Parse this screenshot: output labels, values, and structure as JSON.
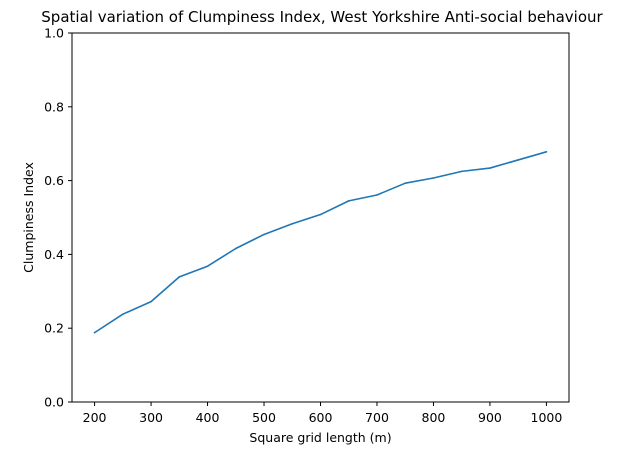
{
  "chart_data": {
    "type": "line",
    "title": "Spatial variation of Clumpiness Index, West Yorkshire Anti-social behaviour",
    "xlabel": "Square grid length (m)",
    "ylabel": "Clumpiness Index",
    "xlim": [
      160,
      1040
    ],
    "ylim": [
      0.0,
      1.0
    ],
    "xticks": [
      200,
      300,
      400,
      500,
      600,
      700,
      800,
      900,
      1000
    ],
    "xtick_labels": [
      "200",
      "300",
      "400",
      "500",
      "600",
      "700",
      "800",
      "900",
      "1000"
    ],
    "yticks": [
      0.0,
      0.2,
      0.4,
      0.6,
      0.8,
      1.0
    ],
    "ytick_labels": [
      "0.0",
      "0.2",
      "0.4",
      "0.6",
      "0.8",
      "1.0"
    ],
    "grid": false,
    "color": "#1f77b4",
    "x": [
      200,
      250,
      300,
      350,
      400,
      450,
      500,
      550,
      600,
      650,
      700,
      750,
      800,
      850,
      900,
      950,
      1000
    ],
    "y": [
      0.188,
      0.238,
      0.272,
      0.339,
      0.368,
      0.416,
      0.454,
      0.483,
      0.508,
      0.545,
      0.561,
      0.593,
      0.607,
      0.625,
      0.634,
      0.656,
      0.678
    ]
  }
}
